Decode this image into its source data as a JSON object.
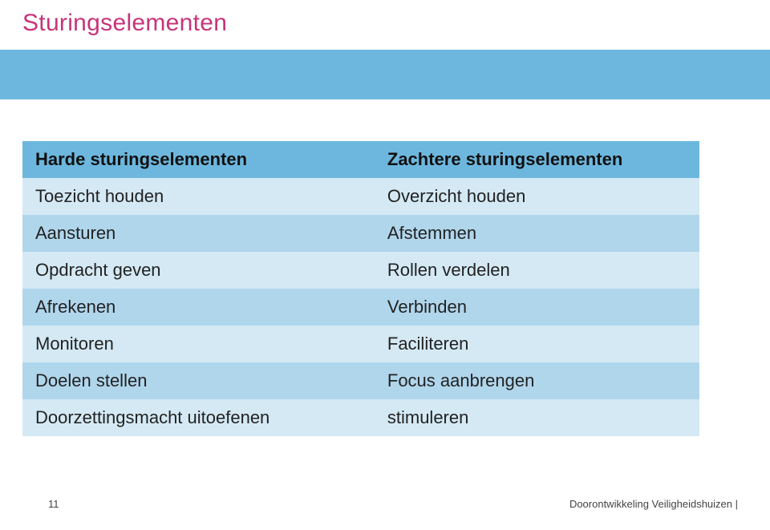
{
  "title": "Sturingselementen",
  "colors": {
    "accent_bar": "#6db7de",
    "title_text": "#c7347a",
    "row_light": "#d4e9f4",
    "row_mid": "#b0d6ec",
    "background": "#ffffff",
    "text": "#222222"
  },
  "typography": {
    "title_fontsize_pt": 22,
    "body_fontsize_pt": 17,
    "footer_fontsize_pt": 10,
    "font_family": "Verdana"
  },
  "table": {
    "type": "table",
    "columns": [
      "Harde sturingselementen",
      "Zachtere sturingselementen"
    ],
    "col_widths_pct": [
      52,
      48
    ],
    "rows": [
      [
        "Toezicht houden",
        "Overzicht houden"
      ],
      [
        "Aansturen",
        "Afstemmen"
      ],
      [
        "Opdracht geven",
        "Rollen verdelen"
      ],
      [
        "Afrekenen",
        "Verbinden"
      ],
      [
        "Monitoren",
        "Faciliteren"
      ],
      [
        "Doelen stellen",
        "Focus aanbrengen"
      ],
      [
        "Doorzettingsmacht uitoefenen",
        "stimuleren"
      ]
    ],
    "row_colors": [
      "#d4e9f4",
      "#b0d6ec",
      "#d4e9f4",
      "#b0d6ec",
      "#d4e9f4",
      "#b0d6ec",
      "#d4e9f4"
    ]
  },
  "footer": {
    "page_number": "11",
    "text": "Doorontwikkeling Veiligheidshuizen |"
  }
}
